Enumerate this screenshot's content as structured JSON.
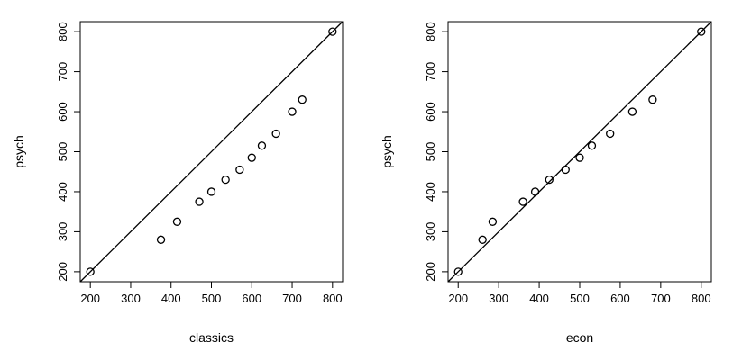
{
  "chart_data": [
    {
      "type": "scatter",
      "xlabel": "classics",
      "ylabel": "psych",
      "xlim": [
        175,
        825
      ],
      "ylim": [
        175,
        825
      ],
      "xticks": [
        200,
        300,
        400,
        500,
        600,
        700,
        800
      ],
      "yticks": [
        200,
        300,
        400,
        500,
        600,
        700,
        800
      ],
      "reference_line": "y = x",
      "points": [
        {
          "x": 200,
          "y": 200
        },
        {
          "x": 375,
          "y": 280
        },
        {
          "x": 415,
          "y": 325
        },
        {
          "x": 470,
          "y": 375
        },
        {
          "x": 500,
          "y": 400
        },
        {
          "x": 535,
          "y": 430
        },
        {
          "x": 570,
          "y": 455
        },
        {
          "x": 600,
          "y": 485
        },
        {
          "x": 625,
          "y": 515
        },
        {
          "x": 660,
          "y": 545
        },
        {
          "x": 700,
          "y": 600
        },
        {
          "x": 725,
          "y": 630
        },
        {
          "x": 800,
          "y": 800
        }
      ]
    },
    {
      "type": "scatter",
      "xlabel": "econ",
      "ylabel": "psych",
      "xlim": [
        175,
        825
      ],
      "ylim": [
        175,
        825
      ],
      "xticks": [
        200,
        300,
        400,
        500,
        600,
        700,
        800
      ],
      "yticks": [
        200,
        300,
        400,
        500,
        600,
        700,
        800
      ],
      "reference_line": "y = x",
      "points": [
        {
          "x": 200,
          "y": 200
        },
        {
          "x": 260,
          "y": 280
        },
        {
          "x": 285,
          "y": 325
        },
        {
          "x": 360,
          "y": 375
        },
        {
          "x": 390,
          "y": 400
        },
        {
          "x": 425,
          "y": 430
        },
        {
          "x": 465,
          "y": 455
        },
        {
          "x": 500,
          "y": 485
        },
        {
          "x": 530,
          "y": 515
        },
        {
          "x": 575,
          "y": 545
        },
        {
          "x": 630,
          "y": 600
        },
        {
          "x": 680,
          "y": 630
        },
        {
          "x": 800,
          "y": 800
        }
      ]
    }
  ]
}
